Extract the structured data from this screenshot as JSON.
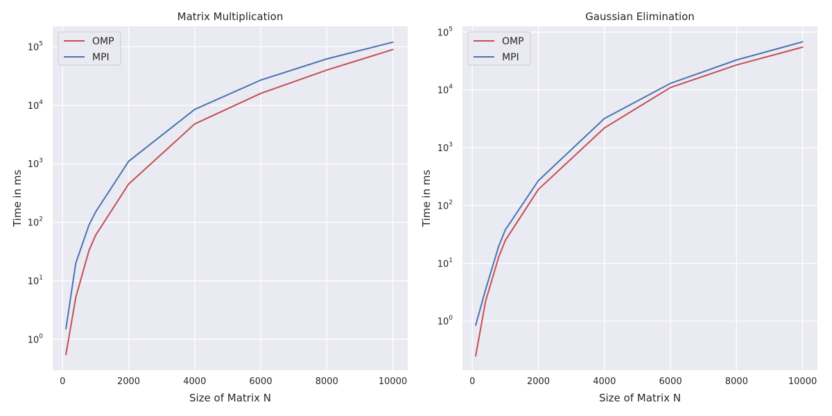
{
  "chart_data": [
    {
      "type": "line",
      "title": "Matrix Multiplication",
      "xlabel": "Size of Matrix N",
      "ylabel": "Time in ms",
      "xscale": "linear",
      "yscale": "log",
      "xlim": [
        -300,
        10450
      ],
      "ylim_log10": [
        -0.53,
        5.35
      ],
      "xticks": [
        0,
        2000,
        4000,
        6000,
        8000,
        10000
      ],
      "xtick_labels": [
        "0",
        "2000",
        "4000",
        "6000",
        "8000",
        "10000"
      ],
      "yticks_log10": [
        0,
        1,
        2,
        3,
        4,
        5
      ],
      "ytick_labels": [
        {
          "base": "10",
          "exp": "0"
        },
        {
          "base": "10",
          "exp": "1"
        },
        {
          "base": "10",
          "exp": "2"
        },
        {
          "base": "10",
          "exp": "3"
        },
        {
          "base": "10",
          "exp": "4"
        },
        {
          "base": "10",
          "exp": "5"
        }
      ],
      "grid": true,
      "legend_position": "top-left",
      "series": [
        {
          "name": "OMP",
          "color": "#c44e52",
          "x": [
            100,
            400,
            800,
            1000,
            2000,
            4000,
            6000,
            8000,
            10000
          ],
          "y": [
            0.55,
            5.2,
            33,
            60,
            450,
            4800,
            16000,
            40000,
            90000
          ]
        },
        {
          "name": "MPI",
          "color": "#4c72b0",
          "x": [
            100,
            400,
            800,
            1000,
            2000,
            4000,
            6000,
            8000,
            10000
          ],
          "y": [
            1.5,
            20,
            90,
            150,
            1100,
            8500,
            27000,
            62000,
            120000
          ]
        }
      ]
    },
    {
      "type": "line",
      "title": "Gaussian Elimination",
      "xlabel": "Size of Matrix N",
      "ylabel": "Time in ms",
      "xscale": "linear",
      "yscale": "log",
      "xlim": [
        -300,
        10450
      ],
      "ylim_log10": [
        -0.85,
        5.1
      ],
      "xticks": [
        0,
        2000,
        4000,
        6000,
        8000,
        10000
      ],
      "xtick_labels": [
        "0",
        "2000",
        "4000",
        "6000",
        "8000",
        "10000"
      ],
      "yticks_log10": [
        0,
        1,
        2,
        3,
        4,
        5
      ],
      "ytick_labels": [
        {
          "base": "10",
          "exp": "0"
        },
        {
          "base": "10",
          "exp": "1"
        },
        {
          "base": "10",
          "exp": "2"
        },
        {
          "base": "10",
          "exp": "3"
        },
        {
          "base": "10",
          "exp": "4"
        },
        {
          "base": "10",
          "exp": "5"
        }
      ],
      "grid": true,
      "legend_position": "top-left",
      "series": [
        {
          "name": "OMP",
          "color": "#c44e52",
          "x": [
            100,
            400,
            800,
            1000,
            2000,
            4000,
            6000,
            8000,
            10000
          ],
          "y": [
            0.25,
            2.2,
            13,
            25,
            190,
            2200,
            11000,
            27000,
            55000
          ]
        },
        {
          "name": "MPI",
          "color": "#4c72b0",
          "x": [
            100,
            400,
            800,
            1000,
            2000,
            4000,
            6000,
            8000,
            10000
          ],
          "y": [
            0.85,
            3.5,
            20,
            38,
            270,
            3200,
            13000,
            33000,
            68000
          ]
        }
      ]
    }
  ],
  "colors": {
    "plot_background": "#eaeaf2",
    "grid": "#ffffff",
    "text": "#262626"
  }
}
